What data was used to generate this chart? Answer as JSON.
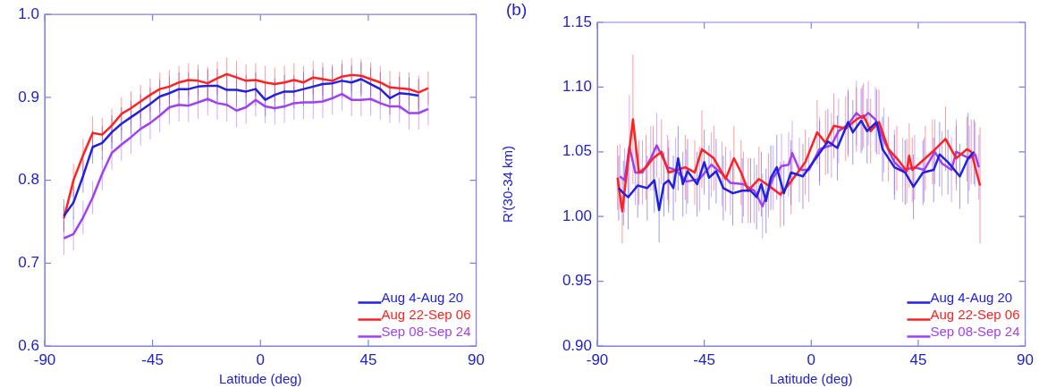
{
  "chart_data": [
    {
      "type": "line",
      "xlabel": "Latitude (deg)",
      "xlim": [
        -90,
        90
      ],
      "xticks": [
        -90,
        -45,
        0,
        45,
        90
      ],
      "ylim": [
        0.6,
        1.0
      ],
      "yticks": [
        0.6,
        0.7,
        0.8,
        0.9,
        {
          "value": 1.0,
          "label": "1.0"
        }
      ],
      "legend": "bottom right",
      "grid": false,
      "x": [
        -82,
        -78,
        -74,
        -70,
        -66,
        -62,
        -58,
        -54,
        -50,
        -46,
        -42,
        -38,
        -34,
        -30,
        -26,
        -22,
        -18,
        -14,
        -10,
        -6,
        -2,
        2,
        6,
        10,
        14,
        18,
        22,
        26,
        30,
        34,
        38,
        42,
        46,
        50,
        54,
        58,
        62,
        66,
        70
      ],
      "series": [
        {
          "name": "Aug 4-Aug 20",
          "color": "#2020e0",
          "values": [
            0.757,
            0.773,
            0.805,
            0.84,
            0.845,
            0.858,
            0.868,
            0.876,
            0.884,
            0.892,
            0.901,
            0.905,
            0.91,
            0.91,
            0.913,
            0.914,
            0.914,
            0.909,
            0.909,
            0.907,
            0.91,
            0.897,
            0.903,
            0.907,
            0.907,
            0.91,
            0.913,
            0.916,
            0.917,
            0.92,
            0.918,
            0.922,
            0.916,
            0.91,
            0.899,
            0.905,
            0.904,
            0.902,
            null
          ],
          "errors": [
            0.02,
            0.02,
            0.02,
            0.02,
            0.02,
            0.02,
            0.02,
            0.02,
            0.02,
            0.02,
            0.02,
            0.02,
            0.02,
            0.02,
            0.02,
            0.02,
            0.02,
            0.02,
            0.02,
            0.02,
            0.02,
            0.02,
            0.02,
            0.02,
            0.02,
            0.02,
            0.02,
            0.02,
            0.02,
            0.02,
            0.02,
            0.02,
            0.02,
            0.02,
            0.02,
            0.02,
            0.02,
            0.02,
            null
          ]
        },
        {
          "name": "Aug 22-Sep 06",
          "color": "#ff2020",
          "values": [
            0.754,
            0.8,
            0.83,
            0.857,
            0.855,
            0.866,
            0.88,
            0.887,
            0.895,
            0.903,
            0.91,
            0.913,
            0.918,
            0.921,
            0.92,
            0.917,
            0.923,
            0.928,
            0.924,
            0.92,
            0.921,
            0.918,
            0.916,
            0.918,
            0.921,
            0.918,
            0.924,
            0.922,
            0.92,
            0.925,
            0.927,
            0.926,
            0.922,
            0.918,
            0.912,
            0.911,
            0.91,
            0.906,
            0.911
          ],
          "errors": [
            0.015,
            0.02,
            0.02,
            0.02,
            0.02,
            0.02,
            0.02,
            0.02,
            0.02,
            0.02,
            0.02,
            0.02,
            0.02,
            0.02,
            0.02,
            0.02,
            0.02,
            0.02,
            0.02,
            0.02,
            0.02,
            0.02,
            0.02,
            0.02,
            0.02,
            0.02,
            0.02,
            0.02,
            0.02,
            0.02,
            0.02,
            0.02,
            0.02,
            0.02,
            0.02,
            0.02,
            0.02,
            0.02,
            0.02
          ]
        },
        {
          "name": "Sep 08-Sep 24",
          "color": "#a040f0",
          "values": [
            0.73,
            0.735,
            0.755,
            0.779,
            0.808,
            0.833,
            0.843,
            0.852,
            0.862,
            0.869,
            0.878,
            0.888,
            0.891,
            0.89,
            0.894,
            0.898,
            0.893,
            0.891,
            0.884,
            0.888,
            0.897,
            0.889,
            0.887,
            0.889,
            0.893,
            0.894,
            0.894,
            0.895,
            0.899,
            0.904,
            0.897,
            0.897,
            0.898,
            0.893,
            0.889,
            0.889,
            0.881,
            0.881,
            0.886
          ],
          "errors": [
            0.02,
            0.02,
            0.02,
            0.02,
            0.02,
            0.02,
            0.02,
            0.02,
            0.02,
            0.02,
            0.02,
            0.02,
            0.02,
            0.02,
            0.02,
            0.02,
            0.02,
            0.02,
            0.02,
            0.02,
            0.02,
            0.02,
            0.02,
            0.02,
            0.02,
            0.02,
            0.02,
            0.02,
            0.02,
            0.02,
            0.02,
            0.02,
            0.02,
            0.02,
            0.02,
            0.02,
            0.02,
            0.02,
            0.02
          ]
        }
      ]
    },
    {
      "type": "line",
      "title": "(b)",
      "xlabel": "Latitude (deg)",
      "ylabel": "R'(30-34 km)",
      "xlim": [
        -90,
        90
      ],
      "xticks": [
        -90,
        -45,
        0,
        45,
        90
      ],
      "ylim": [
        0.9,
        1.15
      ],
      "yticks": [
        {
          "value": 0.9,
          "label": "0.90"
        },
        0.95,
        {
          "value": 1.0,
          "label": "1.00"
        },
        1.05,
        {
          "value": 1.1,
          "label": "1.10"
        },
        1.15
      ],
      "legend": "bottom right",
      "grid": false,
      "series": [
        {
          "name": "Aug 4-Aug 20",
          "color": "#2020e0",
          "x": [
            -81,
            -79,
            -77,
            -73,
            -69,
            -66,
            -64,
            -62,
            -60,
            -58,
            -56,
            -54,
            -52,
            -48,
            -45,
            -43,
            -40,
            -37,
            -33,
            -29,
            -25.5,
            -23,
            -21,
            -19,
            -17,
            -14.5,
            -11.5,
            -8.5,
            -3.5,
            3.5,
            7,
            11,
            15.5,
            17.5,
            21,
            23.5,
            27.5,
            30,
            35,
            39.5,
            43,
            47,
            51.5,
            54,
            57.5,
            62.5,
            66,
            68.5
          ],
          "values": [
            1.022,
            1.018,
            1.015,
            1.024,
            1.022,
            1.028,
            1.005,
            1.025,
            1.028,
            1.022,
            1.045,
            1.025,
            1.035,
            1.025,
            1.042,
            1.03,
            1.035,
            1.022,
            1.018,
            1.02,
            1.02,
            1.015,
            1.025,
            1.012,
            1.03,
            1.038,
            1.018,
            1.034,
            1.031,
            1.049,
            1.058,
            1.053,
            1.073,
            1.065,
            1.074,
            1.066,
            1.073,
            1.052,
            1.038,
            1.034,
            1.023,
            1.034,
            1.036,
            1.048,
            1.042,
            1.031,
            1.045,
            1.05
          ],
          "errors": [
            0.025,
            0.025,
            0.025,
            0.025,
            0.025,
            0.025,
            0.025,
            0.025,
            0.025,
            0.025,
            0.025,
            0.025,
            0.025,
            0.025,
            0.025,
            0.025,
            0.025,
            0.025,
            0.025,
            0.025,
            0.025,
            0.025,
            0.025,
            0.025,
            0.025,
            0.025,
            0.025,
            0.025,
            0.025,
            0.025,
            0.025,
            0.025,
            0.025,
            0.025,
            0.025,
            0.025,
            0.025,
            0.025,
            0.025,
            0.025,
            0.025,
            0.025,
            0.025,
            0.025,
            0.025,
            0.025,
            0.035,
            0.025
          ]
        },
        {
          "name": "Aug 22-Sep 06",
          "color": "#ff2020",
          "x": [
            -81.5,
            -79.5,
            -75,
            -72.5,
            -69.5,
            -66.5,
            -63,
            -60,
            -53,
            -49,
            -46,
            -41,
            -36,
            -32.5,
            -29.5,
            -26.5,
            -22,
            -18,
            -13,
            -8.5,
            -2.5,
            2.5,
            6,
            9.5,
            14.5,
            19,
            22,
            25,
            28.5,
            32.5,
            36,
            40.2,
            41.2,
            42.5,
            48,
            51,
            56.5,
            61,
            65.5,
            67.3,
            71
          ],
          "values": [
            1.03,
            1.004,
            1.075,
            1.034,
            1.038,
            1.045,
            1.05,
            1.034,
            1.038,
            1.034,
            1.052,
            1.045,
            1.029,
            1.045,
            1.034,
            1.02,
            1.029,
            1.024,
            1.017,
            1.027,
            1.042,
            1.065,
            1.057,
            1.07,
            1.068,
            1.075,
            1.078,
            1.066,
            1.073,
            1.052,
            1.045,
            1.035,
            1.047,
            1.036,
            1.045,
            1.05,
            1.06,
            1.045,
            1.052,
            1.05,
            1.024
          ],
          "errors": [
            0.025,
            0.025,
            0.05,
            0.025,
            0.025,
            0.025,
            0.025,
            0.025,
            0.025,
            0.025,
            0.03,
            0.025,
            0.025,
            0.025,
            0.025,
            0.025,
            0.025,
            0.025,
            0.025,
            0.025,
            0.025,
            0.025,
            0.025,
            0.025,
            0.025,
            0.025,
            0.025,
            0.025,
            0.025,
            0.025,
            0.025,
            0.025,
            0.025,
            0.025,
            0.025,
            0.025,
            0.025,
            0.025,
            0.025,
            0.025,
            0.045
          ]
        },
        {
          "name": "Sep 08-Sep 24",
          "color": "#a040f0",
          "x": [
            -80.5,
            -78.5,
            -76.5,
            -74,
            -71,
            -67.5,
            -65,
            -60.5,
            -57,
            -52.5,
            -47,
            -42,
            -37.5,
            -34,
            -28.5,
            -24,
            -20.5,
            -16,
            -12.5,
            -9.5,
            -8,
            -5,
            -1,
            3.5,
            8.5,
            11.5,
            15.5,
            19,
            21.5,
            24,
            27,
            30.5,
            35,
            38.5,
            43.5,
            47.5,
            52,
            55,
            59,
            61,
            66.5,
            69,
            70.5
          ],
          "values": [
            1.031,
            1.028,
            1.054,
            1.034,
            1.034,
            1.045,
            1.055,
            1.038,
            1.036,
            1.027,
            1.029,
            1.04,
            1.033,
            1.026,
            1.025,
            1.02,
            1.008,
            1.03,
            1.039,
            1.04,
            1.049,
            1.036,
            1.036,
            1.052,
            1.055,
            1.066,
            1.071,
            1.08,
            1.076,
            1.08,
            1.075,
            1.059,
            1.042,
            1.036,
            1.038,
            1.036,
            1.05,
            1.041,
            1.036,
            1.05,
            1.045,
            1.048,
            1.038
          ],
          "errors": [
            0.025,
            0.025,
            0.04,
            0.025,
            0.025,
            0.025,
            0.025,
            0.025,
            0.025,
            0.025,
            0.025,
            0.025,
            0.025,
            0.025,
            0.025,
            0.025,
            0.025,
            0.025,
            0.025,
            0.025,
            0.025,
            0.025,
            0.025,
            0.025,
            0.025,
            0.025,
            0.025,
            0.025,
            0.025,
            0.025,
            0.025,
            0.025,
            0.025,
            0.025,
            0.025,
            0.025,
            0.025,
            0.025,
            0.025,
            0.025,
            0.025,
            0.025,
            0.025
          ]
        }
      ]
    }
  ]
}
